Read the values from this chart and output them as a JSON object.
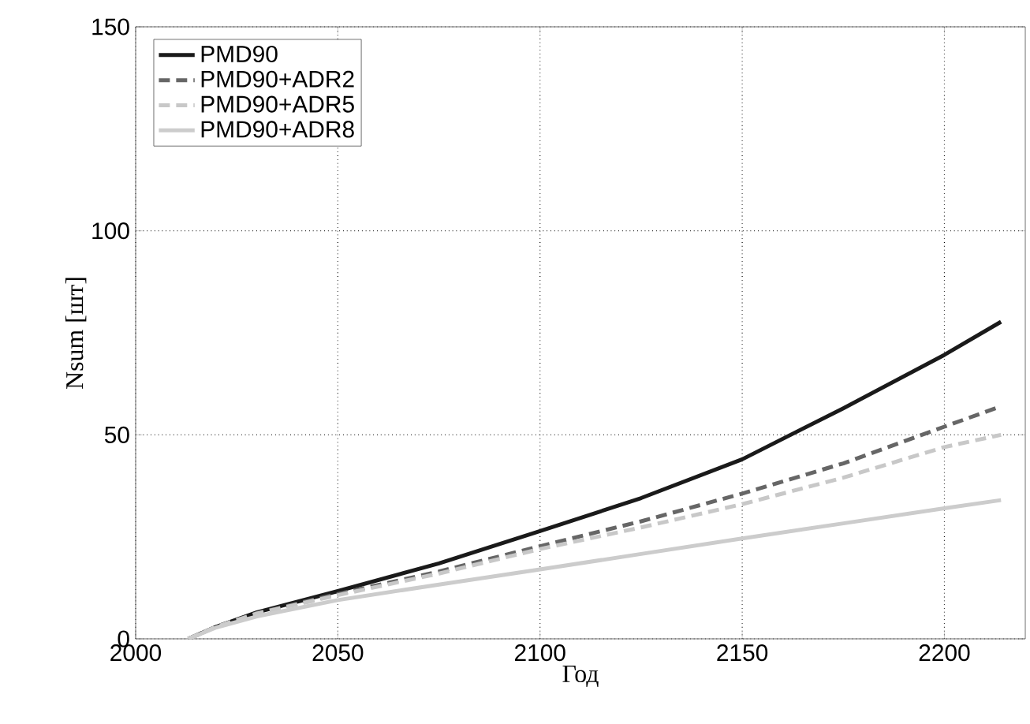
{
  "chart_data": {
    "type": "line",
    "xlabel": "Год",
    "ylabel": "Nsum [шт]",
    "xlim": [
      2000,
      2220
    ],
    "ylim": [
      0,
      150
    ],
    "xticks": [
      2000,
      2050,
      2100,
      2150,
      2200
    ],
    "yticks": [
      0,
      50,
      100,
      150
    ],
    "grid": true,
    "legend": "top left",
    "series": [
      {
        "name": "PMD90",
        "color": "#1a1a1a",
        "line_style": "solid",
        "x": [
          2013,
          2020,
          2030,
          2050,
          2075,
          2100,
          2125,
          2150,
          2175,
          2200,
          2214
        ],
        "values": [
          0,
          3,
          6.5,
          11.7,
          18.5,
          26.4,
          34.5,
          44,
          56.5,
          69.6,
          77.7
        ]
      },
      {
        "name": "PMD90+ADR2",
        "color": "#666666",
        "line_style": "dashed",
        "x": [
          2013,
          2020,
          2030,
          2050,
          2075,
          2100,
          2125,
          2150,
          2175,
          2200,
          2214
        ],
        "values": [
          0,
          3,
          6.3,
          11,
          16.5,
          22.7,
          28.8,
          35.6,
          43,
          52,
          57
        ]
      },
      {
        "name": "PMD90+ADR5",
        "color": "#c8c8c8",
        "line_style": "dashed",
        "x": [
          2013,
          2020,
          2030,
          2050,
          2075,
          2100,
          2125,
          2150,
          2175,
          2200,
          2214
        ],
        "values": [
          0,
          3,
          6.2,
          10.7,
          16,
          22,
          27.3,
          33,
          39.5,
          47,
          50
        ]
      },
      {
        "name": "PMD90+ADR8",
        "color": "#cccccc",
        "line_style": "solid",
        "x": [
          2013,
          2020,
          2030,
          2050,
          2075,
          2100,
          2125,
          2150,
          2175,
          2200,
          2214
        ],
        "values": [
          0,
          2.8,
          5.5,
          9.5,
          13.3,
          17,
          20.8,
          24.6,
          28.3,
          32,
          34
        ]
      }
    ]
  }
}
